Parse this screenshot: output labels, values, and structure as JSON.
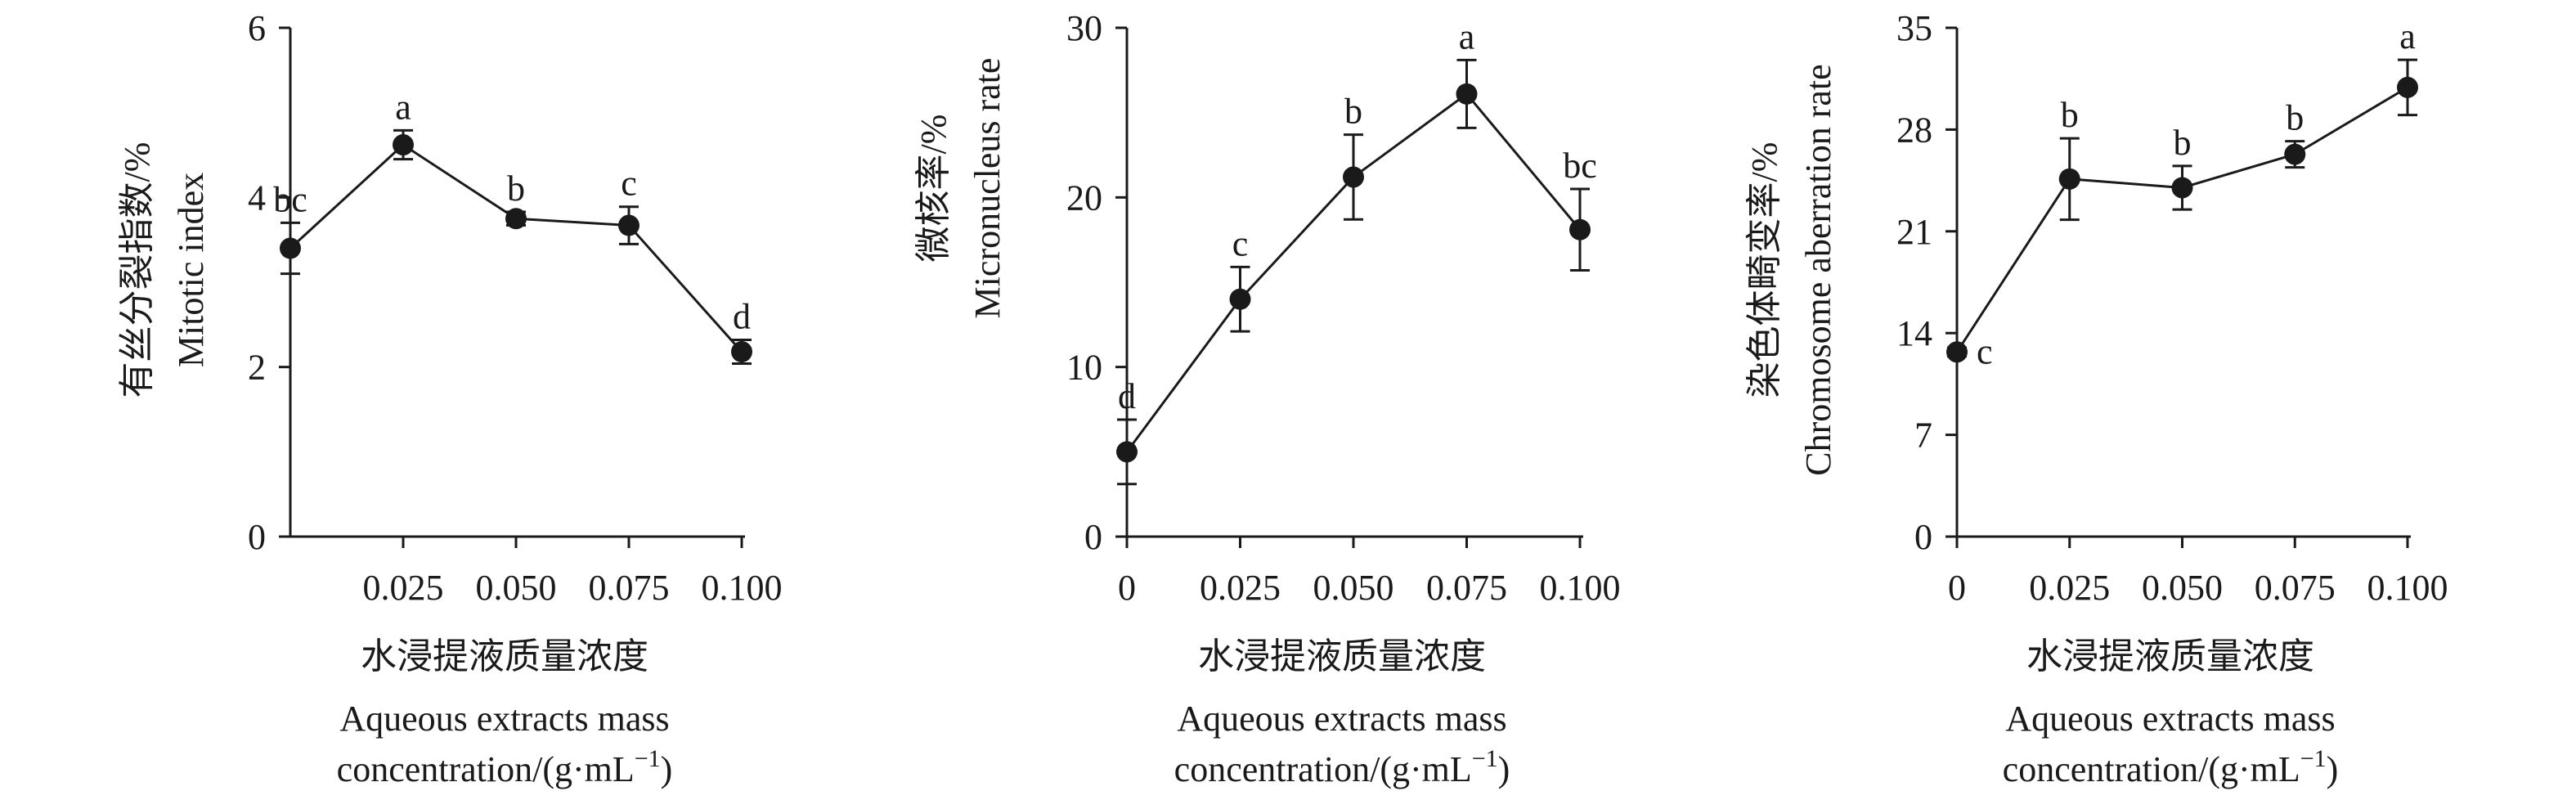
{
  "chart_data": [
    {
      "type": "line",
      "ylabel_cn": "有丝分裂指数/%",
      "ylabel_en": "Mitotic index",
      "xlabel_cn": "水浸提液质量浓度",
      "xlabel_en1": "Aqueous extracts mass",
      "xlabel_en2": "concentration/(g·mL",
      "xlabel_en2_sup": "−1",
      "xlabel_en2_end": ")",
      "xlim": [
        0,
        0.1
      ],
      "ylim": [
        0,
        6
      ],
      "yticks": [
        0,
        2,
        4,
        6
      ],
      "yticklabels": [
        "0",
        "2",
        "4",
        "6"
      ],
      "xticks": [
        0.025,
        0.05,
        0.075,
        0.1
      ],
      "xticklabels": [
        "0.025",
        "0.050",
        "0.075",
        "0.100"
      ],
      "x": [
        0,
        0.025,
        0.05,
        0.075,
        0.1
      ],
      "y": [
        3.4,
        4.62,
        3.75,
        3.67,
        2.18
      ],
      "err": [
        0.3,
        0.17,
        0.08,
        0.22,
        0.14
      ],
      "sig": [
        "bc",
        "a",
        "b",
        "c",
        "d"
      ],
      "sig_pos": [
        "above",
        "above",
        "above",
        "above",
        "above"
      ]
    },
    {
      "type": "line",
      "ylabel_cn": "微核率/%",
      "ylabel_en": "Micronucleus rate",
      "xlabel_cn": "水浸提液质量浓度",
      "xlabel_en1": "Aqueous extracts mass",
      "xlabel_en2": "concentration/(g·mL",
      "xlabel_en2_sup": "−1",
      "xlabel_en2_end": ")",
      "xlim": [
        0,
        0.1
      ],
      "ylim": [
        0,
        30
      ],
      "yticks": [
        0,
        10,
        20,
        30
      ],
      "yticklabels": [
        "0",
        "10",
        "20",
        "30"
      ],
      "xticks": [
        0,
        0.025,
        0.05,
        0.075,
        0.1
      ],
      "xticklabels": [
        "0",
        "0.025",
        "0.050",
        "0.075",
        "0.100"
      ],
      "x": [
        0,
        0.025,
        0.05,
        0.075,
        0.1
      ],
      "y": [
        5,
        14,
        21.2,
        26.1,
        18.1
      ],
      "err": [
        1.9,
        1.9,
        2.5,
        2,
        2.4
      ],
      "sig": [
        "d",
        "c",
        "b",
        "a",
        "bc"
      ],
      "sig_pos": [
        "above",
        "above",
        "above",
        "above",
        "above"
      ]
    },
    {
      "type": "line",
      "ylabel_cn": "染色体畸变率/%",
      "ylabel_en": "Chromosome aberration rate",
      "xlabel_cn": "水浸提液质量浓度",
      "xlabel_en1": "Aqueous extracts mass",
      "xlabel_en2": "concentration/(g·mL",
      "xlabel_en2_sup": "−1",
      "xlabel_en2_end": ")",
      "xlim": [
        0,
        0.1
      ],
      "ylim": [
        0,
        35
      ],
      "yticks": [
        0,
        7,
        14,
        21,
        28,
        35
      ],
      "yticklabels": [
        "0",
        "7",
        "14",
        "21",
        "28",
        "35"
      ],
      "xticks": [
        0,
        0.025,
        0.05,
        0.075,
        0.1
      ],
      "xticklabels": [
        "0",
        "0.025",
        "0.050",
        "0.075",
        "0.100"
      ],
      "x": [
        0,
        0.025,
        0.05,
        0.075,
        0.1
      ],
      "y": [
        12.7,
        24.6,
        24,
        26.3,
        30.9
      ],
      "err": [
        0.3,
        2.8,
        1.5,
        0.9,
        1.9
      ],
      "sig": [
        "c",
        "b",
        "b",
        "b",
        "a"
      ],
      "sig_pos": [
        "right",
        "above",
        "above",
        "above",
        "above"
      ]
    }
  ]
}
